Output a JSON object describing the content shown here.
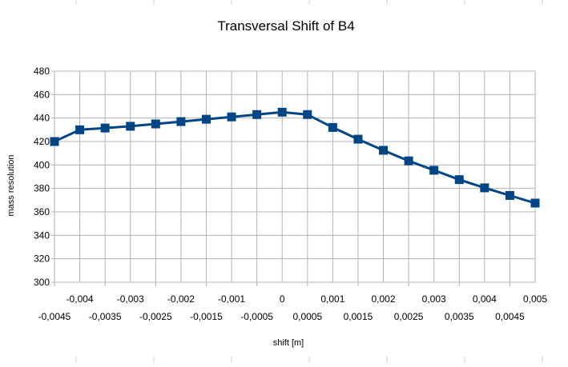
{
  "chart_data": {
    "type": "line",
    "title": "Transversal Shift of B4",
    "xlabel": "shift [m]",
    "ylabel": "mass resolution",
    "ylim": [
      300,
      480
    ],
    "yticks": [
      "300",
      "320",
      "340",
      "360",
      "380",
      "400",
      "420",
      "440",
      "460",
      "480"
    ],
    "xticks_upper": [
      "-0,004",
      "-0,003",
      "-0,002",
      "-0,001",
      "0",
      "0,001",
      "0,002",
      "0,003",
      "0,004",
      "0,005"
    ],
    "xticks_lower": [
      "-0,0045",
      "-0,0035",
      "-0,0025",
      "-0,0015",
      "-0,0005",
      "0,0005",
      "0,0015",
      "0,0025",
      "0,0035",
      "0,0045"
    ],
    "grid": true,
    "series": [
      {
        "color": "#004586",
        "marker": "square",
        "x": [
          -0.0045,
          -0.004,
          -0.0035,
          -0.003,
          -0.0025,
          -0.002,
          -0.0015,
          -0.001,
          -0.0005,
          0,
          0.0005,
          0.001,
          0.0015,
          0.002,
          0.0025,
          0.003,
          0.0035,
          0.004,
          0.0045,
          0.005
        ],
        "values": [
          420,
          430,
          431.5,
          433,
          435,
          437,
          439,
          441,
          443,
          445,
          443,
          432,
          422,
          412.5,
          403.5,
          395.5,
          387.5,
          380.5,
          374,
          367.5
        ]
      }
    ]
  }
}
